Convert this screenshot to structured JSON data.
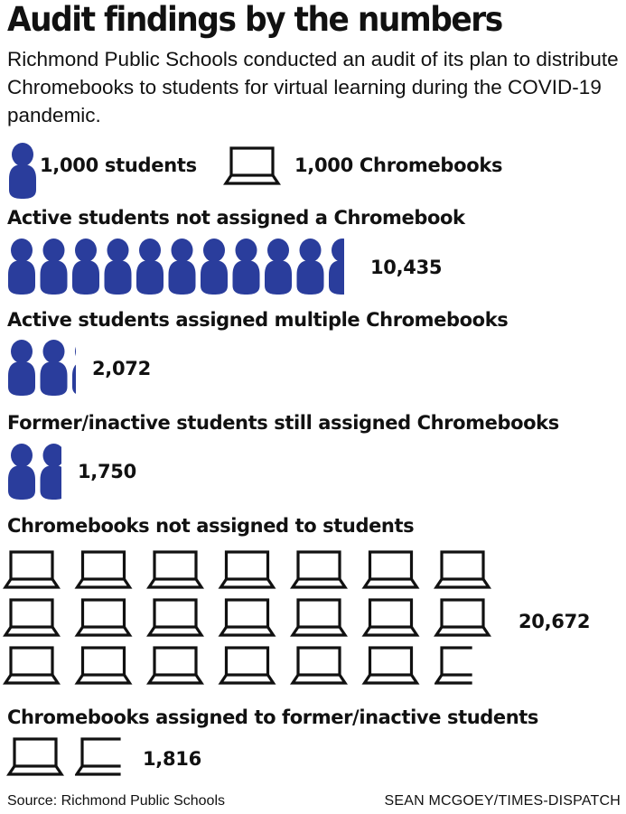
{
  "title": "Audit findings by the numbers",
  "subtitle": "Richmond Public Schools conducted an audit of its plan to distribute Chromebooks to students for virtual learning during the COVID-19 pandemic.",
  "legend": {
    "student_label": "1,000 students",
    "chromebook_label": "1,000 Chromebooks",
    "student_icon": "person-icon",
    "chromebook_icon": "laptop-icon"
  },
  "colors": {
    "student_icon": "#2a3d9c",
    "laptop_outline": "#111111"
  },
  "chart_data": {
    "type": "pictograph",
    "unit": 1000,
    "sections": [
      {
        "label": "Active students not assigned a Chromebook",
        "value": 10435,
        "value_label": "10,435",
        "icon": "student"
      },
      {
        "label": "Active students assigned multiple Chromebooks",
        "value": 2072,
        "value_label": "2,072",
        "icon": "student"
      },
      {
        "label": "Former/inactive students still assigned Chromebooks",
        "value": 1750,
        "value_label": "1,750",
        "icon": "student"
      },
      {
        "label": "Chromebooks not assigned to students",
        "value": 20672,
        "value_label": "20,672",
        "icon": "chromebook"
      },
      {
        "label": "Chromebooks assigned to former/inactive students",
        "value": 1816,
        "value_label": "1,816",
        "icon": "chromebook"
      }
    ]
  },
  "footer": {
    "source": "Source: Richmond Public Schools",
    "credit": "SEAN MCGOEY/TIMES-DISPATCH"
  }
}
